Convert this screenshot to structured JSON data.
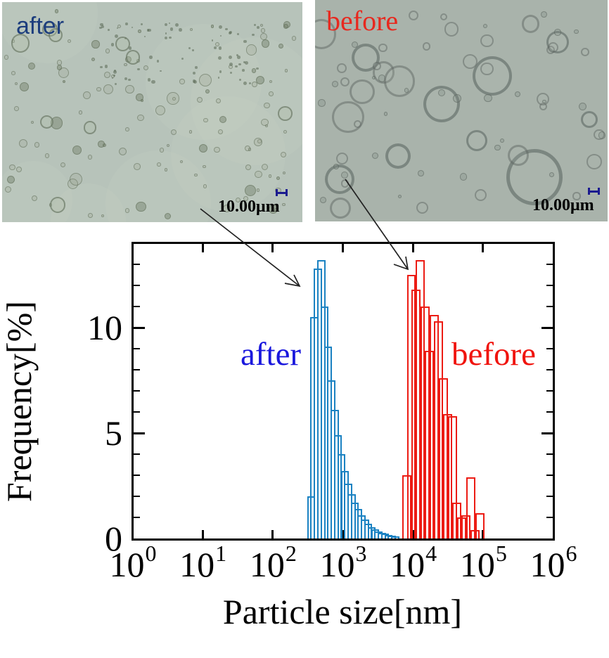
{
  "micrographs": {
    "after": {
      "label": "after",
      "label_color": "#1c3d7d",
      "scale_label": "10.00μm"
    },
    "before": {
      "label": "before",
      "label_color": "#e8281e",
      "scale_label": "10.00μm"
    }
  },
  "annotations": {
    "arrow_after": {
      "from": "micrograph-after",
      "points_to": "after histogram peak"
    },
    "arrow_before": {
      "from": "micrograph-before",
      "points_to": "before histogram peak"
    }
  },
  "chart_data": {
    "type": "bar",
    "subtype": "overlapping-outline-histogram",
    "title": "",
    "xlabel": "Particle size[nm]",
    "ylabel": "Frequency[%]",
    "x_scale": "log10",
    "xlim_nm": [
      1,
      1000000
    ],
    "ylim_pct": [
      0,
      14
    ],
    "grid": false,
    "legend": "inline-colored-text",
    "x_axis": {
      "base": "10",
      "exponents": [
        0,
        1,
        2,
        3,
        4,
        5,
        6
      ]
    },
    "y_axis": {
      "major_ticks": [
        0,
        5,
        10
      ],
      "minor_step": 1,
      "max": 14
    },
    "series": [
      {
        "name": "after",
        "text_color": "#1a18dd",
        "bar_color": "#1b82c2",
        "bin_log10_width": 0.115,
        "bins_left_edge_nm": [
          309,
          345,
          386,
          431,
          481,
          537,
          600,
          670,
          748,
          836,
          933,
          1042,
          1164,
          1300,
          1452,
          1622,
          1811,
          2023,
          2259,
          2523,
          2818,
          3148,
          3516,
          3926,
          4385,
          4898
        ],
        "heights_pct": [
          2.0,
          10.5,
          12.8,
          13.2,
          11.0,
          9.1,
          7.5,
          6.1,
          4.9,
          4.0,
          3.2,
          2.6,
          2.1,
          1.7,
          1.4,
          1.1,
          0.9,
          0.7,
          0.55,
          0.45,
          0.35,
          0.28,
          0.22,
          0.17,
          0.13,
          0.1
        ]
      },
      {
        "name": "before",
        "text_color": "#f0140e",
        "bar_color": "#ec1c14",
        "bin_log10_width": 0.13,
        "bins_left_edge_nm": [
          7047,
          8185,
          9506,
          11041,
          12823,
          14894,
          17298,
          20091,
          23335,
          27104,
          31477,
          36559,
          42462,
          49317,
          57280,
          66527,
          77268
        ],
        "heights_pct": [
          3.0,
          12.5,
          11.8,
          13.2,
          11.0,
          8.9,
          10.6,
          10.3,
          7.6,
          5.9,
          5.8,
          1.7,
          1.0,
          1.1,
          2.9,
          0.4,
          1.2
        ]
      }
    ]
  }
}
